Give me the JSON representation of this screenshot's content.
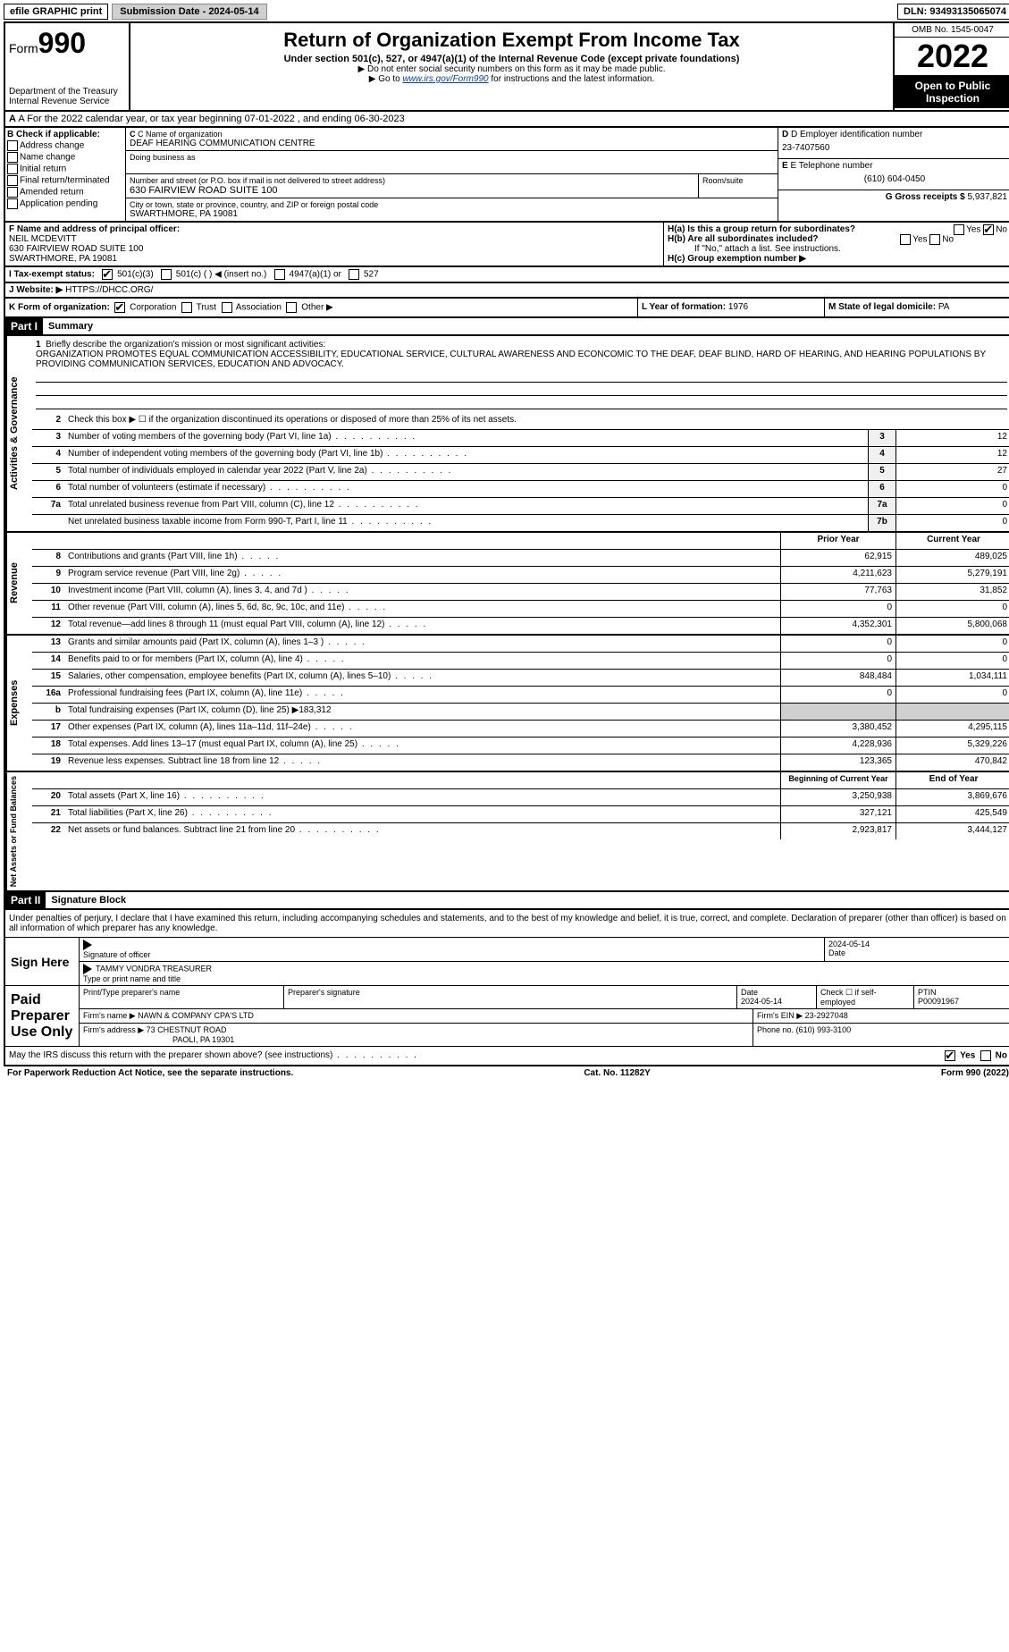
{
  "topbar": {
    "efile": "efile GRAPHIC print",
    "submission_label": "Submission Date - 2024-05-14",
    "dln": "DLN: 93493135065074"
  },
  "header": {
    "form_prefix": "Form",
    "form_num": "990",
    "dept": "Department of the Treasury",
    "irs": "Internal Revenue Service",
    "title": "Return of Organization Exempt From Income Tax",
    "subtitle": "Under section 501(c), 527, or 4947(a)(1) of the Internal Revenue Code (except private foundations)",
    "note1": "▶ Do not enter social security numbers on this form as it may be made public.",
    "note2_pre": "▶ Go to ",
    "note2_link": "www.irs.gov/Form990",
    "note2_post": " for instructions and the latest information.",
    "omb": "OMB No. 1545-0047",
    "year": "2022",
    "open": "Open to Public Inspection"
  },
  "row_a": "A For the 2022 calendar year, or tax year beginning 07-01-2022    , and ending 06-30-2023",
  "b": {
    "label": "B Check if applicable:",
    "addr": "Address change",
    "name": "Name change",
    "init": "Initial return",
    "final": "Final return/terminated",
    "amend": "Amended return",
    "app": "Application pending"
  },
  "c": {
    "name_lbl": "C Name of organization",
    "name": "DEAF HEARING COMMUNICATION CENTRE",
    "dba_lbl": "Doing business as",
    "addr_lbl": "Number and street (or P.O. box if mail is not delivered to street address)",
    "room_lbl": "Room/suite",
    "addr": "630 FAIRVIEW ROAD SUITE 100",
    "city_lbl": "City or town, state or province, country, and ZIP or foreign postal code",
    "city": "SWARTHMORE, PA  19081"
  },
  "d": {
    "ein_lbl": "D Employer identification number",
    "ein": "23-7407560",
    "tel_lbl": "E Telephone number",
    "tel": "(610) 604-0450",
    "gross_lbl": "G Gross receipts $",
    "gross": "5,937,821"
  },
  "f": {
    "lbl": "F Name and address of principal officer:",
    "name": "NEIL MCDEVITT",
    "addr1": "630 FAIRVIEW ROAD SUITE 100",
    "addr2": "SWARTHMORE, PA  19081"
  },
  "h": {
    "a": "H(a)  Is this a group return for subordinates?",
    "b": "H(b)  Are all subordinates included?",
    "b_note": "If \"No,\" attach a list. See instructions.",
    "c": "H(c)  Group exemption number ▶",
    "yes": "Yes",
    "no": "No"
  },
  "i": {
    "lbl": "I  Tax-exempt status:",
    "c3": "501(c)(3)",
    "c": "501(c) (  ) ◀ (insert no.)",
    "a1": "4947(a)(1) or",
    "527": "527"
  },
  "j": {
    "lbl": "J  Website: ▶",
    "val": "HTTPS://DHCC.ORG/"
  },
  "k": {
    "lbl": "K Form of organization:",
    "corp": "Corporation",
    "trust": "Trust",
    "assoc": "Association",
    "other": "Other ▶"
  },
  "l": {
    "lbl": "L Year of formation:",
    "val": "1976"
  },
  "m": {
    "lbl": "M State of legal domicile:",
    "val": "PA"
  },
  "part1": {
    "hdr": "Part I",
    "title": "Summary",
    "q1_lbl": "1",
    "q1": "Briefly describe the organization's mission or most significant activities:",
    "mission": "ORGANIZATION PROMOTES EQUAL COMMUNICATION ACCESSIBILITY, EDUCATIONAL SERVICE, CULTURAL AWARENESS AND ECONCOMIC TO THE DEAF, DEAF BLIND, HARD OF HEARING, AND HEARING POPULATIONS BY PROVIDING COMMUNICATION SERVICES, EDUCATION AND ADVOCACY.",
    "q2": "Check this box ▶ ☐  if the organization discontinued its operations or disposed of more than 25% of its net assets.",
    "rows_gov": [
      {
        "n": "3",
        "d": "Number of voting members of the governing body (Part VI, line 1a)",
        "b": "3",
        "v": "12"
      },
      {
        "n": "4",
        "d": "Number of independent voting members of the governing body (Part VI, line 1b)",
        "b": "4",
        "v": "12"
      },
      {
        "n": "5",
        "d": "Total number of individuals employed in calendar year 2022 (Part V, line 2a)",
        "b": "5",
        "v": "27"
      },
      {
        "n": "6",
        "d": "Total number of volunteers (estimate if necessary)",
        "b": "6",
        "v": "0"
      },
      {
        "n": "7a",
        "d": "Total unrelated business revenue from Part VIII, column (C), line 12",
        "b": "7a",
        "v": "0"
      },
      {
        "n": "",
        "d": "Net unrelated business taxable income from Form 990-T, Part I, line 11",
        "b": "7b",
        "v": "0"
      }
    ],
    "col_hdr": {
      "prior": "Prior Year",
      "current": "Current Year"
    },
    "rows_rev": [
      {
        "n": "8",
        "d": "Contributions and grants (Part VIII, line 1h)",
        "p": "62,915",
        "c": "489,025"
      },
      {
        "n": "9",
        "d": "Program service revenue (Part VIII, line 2g)",
        "p": "4,211,623",
        "c": "5,279,191"
      },
      {
        "n": "10",
        "d": "Investment income (Part VIII, column (A), lines 3, 4, and 7d )",
        "p": "77,763",
        "c": "31,852"
      },
      {
        "n": "11",
        "d": "Other revenue (Part VIII, column (A), lines 5, 6d, 8c, 9c, 10c, and 11e)",
        "p": "0",
        "c": "0"
      },
      {
        "n": "12",
        "d": "Total revenue—add lines 8 through 11 (must equal Part VIII, column (A), line 12)",
        "p": "4,352,301",
        "c": "5,800,068"
      }
    ],
    "rows_exp": [
      {
        "n": "13",
        "d": "Grants and similar amounts paid (Part IX, column (A), lines 1–3 )",
        "p": "0",
        "c": "0"
      },
      {
        "n": "14",
        "d": "Benefits paid to or for members (Part IX, column (A), line 4)",
        "p": "0",
        "c": "0"
      },
      {
        "n": "15",
        "d": "Salaries, other compensation, employee benefits (Part IX, column (A), lines 5–10)",
        "p": "848,484",
        "c": "1,034,111"
      },
      {
        "n": "16a",
        "d": "Professional fundraising fees (Part IX, column (A), line 11e)",
        "p": "0",
        "c": "0"
      },
      {
        "n": "b",
        "d": "Total fundraising expenses (Part IX, column (D), line 25) ▶183,312",
        "p": "",
        "c": "",
        "grey": true
      },
      {
        "n": "17",
        "d": "Other expenses (Part IX, column (A), lines 11a–11d, 11f–24e)",
        "p": "3,380,452",
        "c": "4,295,115"
      },
      {
        "n": "18",
        "d": "Total expenses. Add lines 13–17 (must equal Part IX, column (A), line 25)",
        "p": "4,228,936",
        "c": "5,329,226"
      },
      {
        "n": "19",
        "d": "Revenue less expenses. Subtract line 18 from line 12",
        "p": "123,365",
        "c": "470,842"
      }
    ],
    "col_hdr2": {
      "prior": "Beginning of Current Year",
      "current": "End of Year"
    },
    "rows_net": [
      {
        "n": "20",
        "d": "Total assets (Part X, line 16)",
        "p": "3,250,938",
        "c": "3,869,676"
      },
      {
        "n": "21",
        "d": "Total liabilities (Part X, line 26)",
        "p": "327,121",
        "c": "425,549"
      },
      {
        "n": "22",
        "d": "Net assets or fund balances. Subtract line 21 from line 20",
        "p": "2,923,817",
        "c": "3,444,127"
      }
    ],
    "side_gov": "Activities & Governance",
    "side_rev": "Revenue",
    "side_exp": "Expenses",
    "side_net": "Net Assets or Fund Balances"
  },
  "part2": {
    "hdr": "Part II",
    "title": "Signature Block",
    "decl": "Under penalties of perjury, I declare that I have examined this return, including accompanying schedules and statements, and to the best of my knowledge and belief, it is true, correct, and complete. Declaration of preparer (other than officer) is based on all information of which preparer has any knowledge.",
    "sign_here": "Sign Here",
    "sig_officer": "Signature of officer",
    "date": "Date",
    "sig_date": "2024-05-14",
    "name_title": "TAMMY VONDRA  TREASURER",
    "name_title_lbl": "Type or print name and title",
    "paid": "Paid Preparer Use Only",
    "prep_name_lbl": "Print/Type preparer's name",
    "prep_sig_lbl": "Preparer's signature",
    "prep_date_lbl": "Date",
    "prep_date": "2024-05-14",
    "check_lbl": "Check ☐ if self-employed",
    "ptin_lbl": "PTIN",
    "ptin": "P00091967",
    "firm_name_lbl": "Firm's name    ▶",
    "firm_name": "NAWN & COMPANY CPA'S LTD",
    "firm_ein_lbl": "Firm's EIN ▶",
    "firm_ein": "23-2927048",
    "firm_addr_lbl": "Firm's address ▶",
    "firm_addr": "73 CHESTNUT ROAD",
    "firm_city": "PAOLI, PA  19301",
    "phone_lbl": "Phone no.",
    "phone": "(610) 993-3100",
    "may_irs": "May the IRS discuss this return with the preparer shown above? (see instructions)",
    "yes": "Yes",
    "no": "No"
  },
  "footer": {
    "left": "For Paperwork Reduction Act Notice, see the separate instructions.",
    "mid": "Cat. No. 11282Y",
    "right": "Form 990 (2022)"
  }
}
